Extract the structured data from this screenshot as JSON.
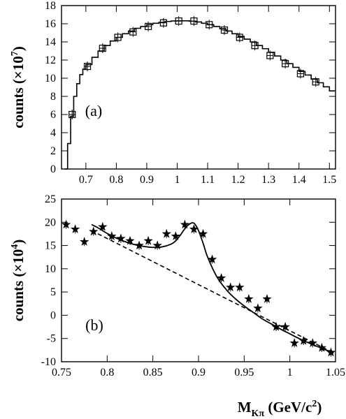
{
  "chart_data": [
    {
      "type": "line",
      "panel_label": "(a)",
      "ylabel": "counts (×10",
      "ylabel_exp": "7",
      "ylabel_close": ")",
      "xlim": [
        0.62,
        1.52
      ],
      "ylim": [
        0,
        18
      ],
      "xticks": [
        0.7,
        0.8,
        0.9,
        1,
        1.1,
        1.2,
        1.3,
        1.4,
        1.5
      ],
      "xtick_labels": [
        "0.7",
        "0.8",
        "0.9",
        "1",
        "1.1",
        "1.2",
        "1.3",
        "1.4",
        "1.5"
      ],
      "yticks": [
        0,
        2,
        4,
        6,
        8,
        10,
        12,
        14,
        16,
        18
      ],
      "ytick_labels": [
        "0",
        "2",
        "4",
        "6",
        "8",
        "10",
        "12",
        "14",
        "16",
        "18"
      ],
      "histogram": {
        "x": [
          0.63,
          0.64,
          0.65,
          0.66,
          0.67,
          0.68,
          0.69,
          0.7,
          0.72,
          0.74,
          0.76,
          0.78,
          0.8,
          0.82,
          0.84,
          0.86,
          0.88,
          0.9,
          0.92,
          0.94,
          0.96,
          0.98,
          1.0,
          1.02,
          1.04,
          1.06,
          1.08,
          1.1,
          1.12,
          1.14,
          1.16,
          1.18,
          1.2,
          1.22,
          1.24,
          1.26,
          1.28,
          1.3,
          1.32,
          1.34,
          1.36,
          1.38,
          1.4,
          1.42,
          1.44,
          1.46,
          1.48,
          1.5
        ],
        "y": [
          0,
          2.8,
          5.8,
          8.0,
          9.4,
          10.4,
          11.0,
          11.5,
          12.3,
          13.0,
          13.6,
          14.1,
          14.5,
          14.9,
          15.2,
          15.5,
          15.7,
          15.9,
          16.05,
          16.15,
          16.25,
          16.3,
          16.32,
          16.32,
          16.28,
          16.2,
          16.05,
          15.9,
          15.7,
          15.45,
          15.2,
          14.9,
          14.6,
          14.3,
          14.0,
          13.6,
          13.25,
          12.85,
          12.45,
          12.0,
          11.6,
          11.2,
          10.75,
          10.35,
          9.9,
          9.5,
          9.05,
          8.6
        ]
      },
      "points": {
        "x": [
          0.655,
          0.705,
          0.755,
          0.805,
          0.855,
          0.905,
          0.955,
          1.005,
          1.055,
          1.105,
          1.155,
          1.205,
          1.255,
          1.305,
          1.355,
          1.405,
          1.455
        ],
        "y": [
          6.0,
          11.3,
          13.3,
          14.5,
          15.1,
          15.7,
          16.1,
          16.3,
          16.3,
          15.9,
          15.3,
          14.5,
          13.6,
          12.5,
          11.6,
          10.5,
          9.6
        ]
      }
    },
    {
      "type": "scatter",
      "panel_label": "(b)",
      "ylabel": "counts (×10",
      "ylabel_exp": "4",
      "ylabel_close": ")",
      "xlabel_main": "M",
      "xlabel_sub": "Kπ",
      "xlabel_unit": "(GeV/c",
      "xlabel_unit_exp": "2",
      "xlabel_unit_close": ")",
      "xlim": [
        0.75,
        1.05
      ],
      "ylim": [
        -10,
        25
      ],
      "xticks": [
        0.75,
        0.8,
        0.85,
        0.9,
        0.95,
        1.0,
        1.05
      ],
      "xtick_labels": [
        "0.75",
        "0.8",
        "0.85",
        "0.9",
        "0.95",
        "1",
        "1.05"
      ],
      "yticks": [
        -10,
        -5,
        0,
        5,
        10,
        15,
        20,
        25
      ],
      "ytick_labels": [
        "-10",
        "-5",
        "0",
        "5",
        "10",
        "15",
        "20",
        "25"
      ],
      "points": {
        "x": [
          0.755,
          0.765,
          0.775,
          0.785,
          0.795,
          0.805,
          0.815,
          0.825,
          0.835,
          0.845,
          0.855,
          0.865,
          0.875,
          0.885,
          0.895,
          0.905,
          0.915,
          0.925,
          0.935,
          0.945,
          0.955,
          0.965,
          0.975,
          0.985,
          0.995,
          1.005,
          1.015,
          1.025,
          1.035,
          1.045
        ],
        "y": [
          19.5,
          18.5,
          15.8,
          18.0,
          19.0,
          17.0,
          16.5,
          16.0,
          15.0,
          16.0,
          15.0,
          17.5,
          17.0,
          19.5,
          18.5,
          17.5,
          12.0,
          8.0,
          6.0,
          6.0,
          3.5,
          1.5,
          3.5,
          -2.5,
          -2.5,
          -6.0,
          -5.5,
          -6.0,
          -7.0,
          -8.0
        ],
        "yerr": 0.9
      },
      "fit": {
        "x": [
          0.783,
          0.79,
          0.8,
          0.81,
          0.82,
          0.83,
          0.84,
          0.85,
          0.86,
          0.87,
          0.875,
          0.88,
          0.885,
          0.89,
          0.895,
          0.9,
          0.905,
          0.91,
          0.92,
          0.93,
          0.94,
          0.95,
          0.96,
          0.97,
          0.98,
          0.99,
          1.0,
          1.01,
          1.02,
          1.03,
          1.04,
          1.048
        ],
        "y": [
          19.5,
          18.8,
          17.6,
          16.6,
          15.8,
          15.2,
          14.8,
          14.6,
          14.7,
          15.3,
          16.0,
          17.2,
          18.6,
          19.6,
          19.8,
          18.2,
          15.5,
          12.5,
          8.3,
          5.6,
          3.6,
          2.0,
          0.6,
          -0.8,
          -1.9,
          -3.0,
          -4.0,
          -5.0,
          -5.9,
          -6.7,
          -7.5,
          -8.1
        ]
      },
      "background": {
        "x": [
          0.783,
          1.048
        ],
        "y": [
          18.2,
          -8.1
        ]
      }
    }
  ]
}
